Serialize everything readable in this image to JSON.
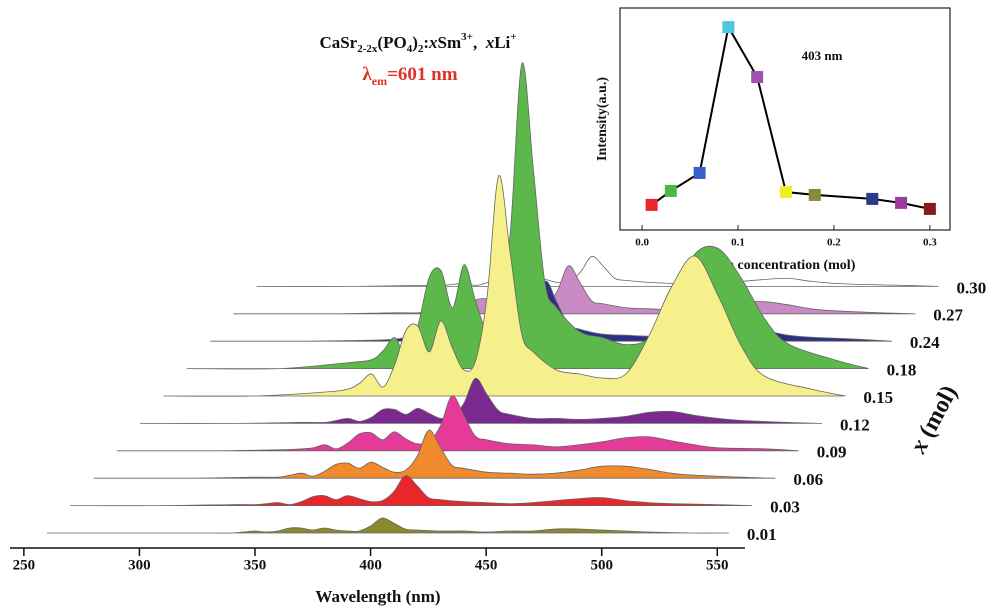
{
  "chart_data": [
    {
      "type": "ridgeline",
      "title": [
        "CaSr",
        "2-2x",
        "(PO",
        "4",
        ")",
        "2",
        ":",
        "x",
        "Sm",
        "3+",
        ",  ",
        "x",
        "Li",
        "+"
      ],
      "subtitle": [
        "λ",
        "em",
        "=601 nm"
      ],
      "xlabel": "Wavelength (nm)",
      "depth_label": [
        "x",
        " (mol)"
      ],
      "xlim": [
        244,
        562
      ],
      "xticks": [
        250,
        300,
        350,
        400,
        450,
        500,
        550
      ],
      "x": [
        260,
        300,
        330,
        340,
        345,
        350,
        355,
        360,
        365,
        370,
        375,
        380,
        385,
        390,
        395,
        400,
        405,
        410,
        415,
        420,
        430,
        440,
        450,
        460,
        470,
        480,
        490,
        500,
        510,
        520,
        540,
        555
      ],
      "series": [
        {
          "name": "0.01",
          "color": "#8a8a2a",
          "values": [
            0,
            0,
            0,
            0,
            1,
            2,
            1,
            2,
            5,
            5,
            3,
            5,
            3,
            2,
            2,
            7,
            15,
            10,
            4,
            3,
            2,
            2,
            1,
            2,
            2,
            4,
            4,
            3,
            2,
            1,
            0,
            0
          ]
        },
        {
          "name": "0.03",
          "color": "#e8262b",
          "values": [
            0,
            0,
            1,
            1,
            2,
            3,
            1,
            4,
            9,
            10,
            6,
            10,
            7,
            4,
            5,
            14,
            30,
            20,
            8,
            6,
            4,
            3,
            2,
            3,
            5,
            7,
            8,
            5,
            3,
            2,
            1,
            0
          ]
        },
        {
          "name": "0.06",
          "color": "#f08a2c",
          "values": [
            0,
            0,
            1,
            1,
            3,
            5,
            2,
            7,
            14,
            15,
            10,
            16,
            11,
            6,
            8,
            22,
            48,
            31,
            13,
            10,
            6,
            5,
            4,
            5,
            8,
            12,
            12,
            9,
            5,
            3,
            1,
            0
          ]
        },
        {
          "name": "0.09",
          "color": "#e63a98",
          "values": [
            0,
            0,
            1,
            2,
            3,
            6,
            2,
            8,
            17,
            18,
            11,
            19,
            12,
            7,
            9,
            25,
            55,
            36,
            15,
            11,
            7,
            6,
            4,
            6,
            9,
            13,
            14,
            10,
            6,
            3,
            2,
            0
          ]
        },
        {
          "name": "0.12",
          "color": "#7a2a8e",
          "values": [
            0,
            0,
            1,
            1,
            3,
            5,
            2,
            6,
            14,
            14,
            9,
            15,
            10,
            5,
            7,
            20,
            45,
            29,
            13,
            9,
            5,
            5,
            4,
            5,
            7,
            11,
            12,
            8,
            5,
            3,
            1,
            0
          ]
        },
        {
          "name": "0.15",
          "color": "#f6f08c",
          "values": [
            0,
            0,
            4,
            7,
            13,
            22,
            9,
            31,
            66,
            70,
            44,
            75,
            48,
            26,
            35,
            99,
            220,
            143,
            62,
            44,
            26,
            22,
            18,
            22,
            60,
            110,
            140,
            100,
            50,
            20,
            7,
            0
          ]
        },
        {
          "name": "0.18",
          "color": "#5cb84a",
          "values": [
            0,
            0,
            6,
            9,
            18,
            31,
            12,
            43,
            92,
            98,
            61,
            104,
            67,
            37,
            49,
            137,
            305,
            198,
            85,
            61,
            37,
            31,
            24,
            31,
            70,
            115,
            120,
            90,
            50,
            25,
            9,
            0
          ]
        },
        {
          "name": "0.24",
          "color": "#2b2f8a",
          "values": [
            0,
            0,
            1,
            2,
            4,
            6,
            2,
            8,
            18,
            19,
            12,
            20,
            13,
            7,
            10,
            27,
            60,
            39,
            17,
            12,
            7,
            6,
            5,
            6,
            10,
            14,
            16,
            11,
            6,
            4,
            2,
            0
          ]
        },
        {
          "name": "0.27",
          "color": "#c98ac6",
          "values": [
            0,
            0,
            1,
            1,
            3,
            5,
            2,
            7,
            14,
            15,
            10,
            16,
            11,
            6,
            8,
            22,
            48,
            31,
            13,
            10,
            6,
            5,
            4,
            5,
            8,
            12,
            12,
            9,
            5,
            3,
            1,
            0
          ]
        },
        {
          "name": "0.30",
          "color": "#ffffff",
          "values": [
            0,
            0,
            1,
            1,
            2,
            3,
            1,
            4,
            9,
            10,
            6,
            10,
            7,
            4,
            5,
            14,
            30,
            20,
            8,
            6,
            4,
            3,
            2,
            3,
            5,
            7,
            8,
            5,
            3,
            2,
            1,
            0
          ]
        }
      ]
    },
    {
      "type": "line",
      "annotation": "403 nm",
      "xlabel": "Sm concentration (mol)",
      "ylabel": "Intensity(a.u.)",
      "xlim": [
        -0.023,
        0.321
      ],
      "ylim": [
        0,
        100
      ],
      "xticks": [
        {
          "value": 0,
          "label": "0.0"
        },
        0.1,
        0.2,
        0.3
      ],
      "x": [
        0.01,
        0.03,
        0.06,
        0.09,
        0.12,
        0.15,
        0.18,
        0.24,
        0.27,
        0.3
      ],
      "values": [
        11.3,
        17.6,
        25.7,
        91.4,
        68.9,
        17.1,
        15.8,
        14.0,
        12.2,
        9.5
      ],
      "colors": [
        "#e8262b",
        "#4cb84a",
        "#3a5fc8",
        "#4cc8e0",
        "#a050b0",
        "#f0f020",
        "#8a8a3a",
        "#2b3a8a",
        "#9a3aa0",
        "#8a1a1a"
      ],
      "line_color": "#000000"
    }
  ]
}
